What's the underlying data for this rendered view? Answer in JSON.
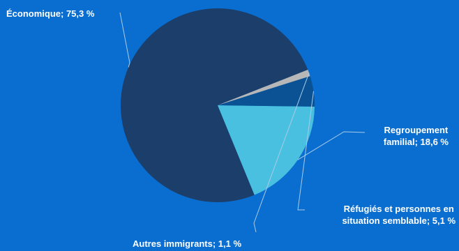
{
  "chart_data": {
    "type": "pie",
    "title": "",
    "series": [
      {
        "label": "Économique",
        "value": 75.3,
        "display": "Économique; 75,3 %",
        "color": "#1b3e6a"
      },
      {
        "label": "Regroupement familial",
        "value": 18.6,
        "display_lines": [
          "Regroupement",
          "familial; 18,6 %"
        ],
        "color": "#49c0df"
      },
      {
        "label": "Réfugiés et personnes en situation semblable",
        "value": 5.1,
        "display_lines": [
          "Réfugiés et personnes en",
          "situation semblable; 5,1 %"
        ],
        "color": "#0b5294"
      },
      {
        "label": "Autres immigrants",
        "value": 1.1,
        "display": "Autres immigrants; 1,1 %",
        "color": "#b7b7b7"
      }
    ],
    "legend": "none",
    "leader_line_color": "#a9cbe8"
  }
}
